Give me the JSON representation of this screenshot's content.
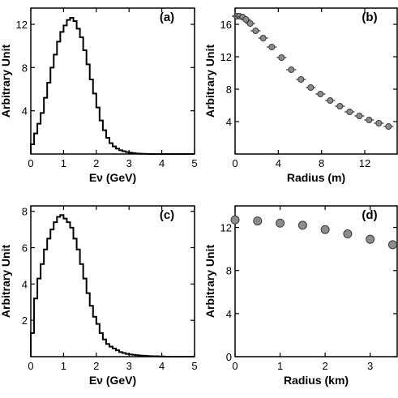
{
  "chart_data": [
    {
      "panel": "(a)",
      "type": "line",
      "style": "step-histogram",
      "xlabel": "Eν (GeV)",
      "ylabel": "Arbitrary Unit",
      "xlim": [
        0,
        5
      ],
      "ylim": [
        0,
        13.5
      ],
      "xticks": [
        0,
        1,
        2,
        3,
        4,
        5
      ],
      "yticks": [
        4,
        8,
        12
      ],
      "bin_width": 0.1,
      "x": [
        0.0,
        0.1,
        0.2,
        0.3,
        0.4,
        0.5,
        0.6,
        0.7,
        0.8,
        0.9,
        1.0,
        1.1,
        1.2,
        1.3,
        1.4,
        1.5,
        1.6,
        1.7,
        1.8,
        1.9,
        2.0,
        2.1,
        2.2,
        2.3,
        2.4,
        2.5,
        2.6,
        2.7,
        2.8,
        2.9,
        3.0,
        3.1,
        3.2,
        3.3,
        3.4,
        3.5,
        3.6,
        3.7,
        3.8,
        3.9,
        4.0,
        4.1,
        4.2,
        4.3,
        4.4,
        4.5,
        4.6,
        4.7,
        4.8,
        4.9
      ],
      "values": [
        0.9,
        1.9,
        2.8,
        3.8,
        5.2,
        6.6,
        8.0,
        9.2,
        10.4,
        11.3,
        11.9,
        12.4,
        12.6,
        12.3,
        11.6,
        10.8,
        9.6,
        8.3,
        6.9,
        5.6,
        4.3,
        3.1,
        2.2,
        1.5,
        1.0,
        0.7,
        0.5,
        0.35,
        0.25,
        0.18,
        0.12,
        0.08,
        0.05,
        0.03,
        0.02,
        0.01,
        0,
        0,
        0,
        0,
        0,
        0,
        0,
        0,
        0,
        0,
        0,
        0,
        0,
        0
      ]
    },
    {
      "panel": "(b)",
      "type": "scatter",
      "error_bars": "horizontal",
      "xlabel": "Radius (m)",
      "ylabel": "Arbitrary Unit",
      "xlim": [
        0,
        15
      ],
      "ylim": [
        0,
        18
      ],
      "xticks": [
        0,
        4,
        8,
        12
      ],
      "yticks": [
        4,
        8,
        12,
        16
      ],
      "x": [
        0.15,
        0.4,
        0.7,
        1.0,
        1.4,
        1.9,
        2.6,
        3.4,
        4.3,
        5.2,
        6.1,
        7.0,
        7.9,
        8.8,
        9.7,
        10.6,
        11.5,
        12.4,
        13.3,
        14.2
      ],
      "values": [
        17.0,
        17.0,
        16.9,
        16.6,
        16.1,
        15.2,
        14.3,
        13.2,
        11.9,
        10.4,
        9.2,
        8.2,
        7.4,
        6.6,
        5.9,
        5.2,
        4.7,
        4.2,
        3.8,
        3.4
      ]
    },
    {
      "panel": "(c)",
      "type": "line",
      "style": "step-histogram",
      "xlabel": "Eν (GeV)",
      "ylabel": "Arbitrary Unit",
      "xlim": [
        0,
        5
      ],
      "ylim": [
        0,
        8.3
      ],
      "xticks": [
        0,
        1,
        2,
        3,
        4,
        5
      ],
      "yticks": [
        2,
        4,
        6,
        8
      ],
      "bin_width": 0.1,
      "x": [
        0.0,
        0.1,
        0.2,
        0.3,
        0.4,
        0.5,
        0.6,
        0.7,
        0.8,
        0.9,
        1.0,
        1.1,
        1.2,
        1.3,
        1.4,
        1.5,
        1.6,
        1.7,
        1.8,
        1.9,
        2.0,
        2.1,
        2.2,
        2.3,
        2.4,
        2.5,
        2.6,
        2.7,
        2.8,
        2.9,
        3.0,
        3.1,
        3.2,
        3.3,
        3.4,
        3.5,
        3.6,
        3.7,
        3.8,
        3.9,
        4.0,
        4.1,
        4.2,
        4.3,
        4.4,
        4.5,
        4.6,
        4.7,
        4.8,
        4.9
      ],
      "values": [
        1.3,
        3.2,
        4.3,
        5.1,
        5.9,
        6.5,
        7.0,
        7.4,
        7.7,
        7.8,
        7.6,
        7.4,
        7.1,
        6.5,
        5.9,
        5.1,
        4.3,
        3.5,
        2.8,
        2.2,
        1.8,
        1.3,
        0.95,
        0.7,
        0.55,
        0.45,
        0.35,
        0.25,
        0.2,
        0.15,
        0.12,
        0.1,
        0.08,
        0.06,
        0.05,
        0.04,
        0.03,
        0.02,
        0.02,
        0.01,
        0.01,
        0,
        0,
        0,
        0,
        0,
        0,
        0,
        0,
        0
      ]
    },
    {
      "panel": "(d)",
      "type": "scatter",
      "xlabel": "Radius (km)",
      "ylabel": "Arbitrary Unit",
      "xlim": [
        0,
        3.6
      ],
      "ylim": [
        0,
        14
      ],
      "xticks": [
        0,
        1,
        2,
        3
      ],
      "yticks": [
        0,
        4,
        8,
        12
      ],
      "x": [
        0.0,
        0.5,
        1.0,
        1.5,
        2.0,
        2.5,
        3.0,
        3.5
      ],
      "values": [
        12.7,
        12.6,
        12.4,
        12.2,
        11.8,
        11.4,
        10.9,
        10.4
      ]
    }
  ]
}
